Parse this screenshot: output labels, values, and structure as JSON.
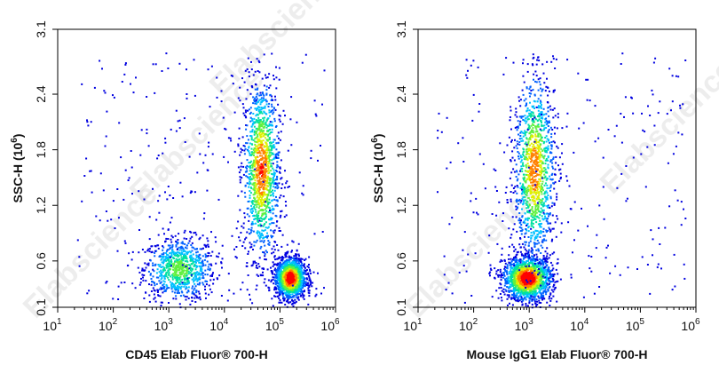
{
  "watermark": "Elabscience",
  "chart_data": [
    {
      "type": "scatter",
      "subtype": "flow-cytometry-density-plot",
      "xscale": "log",
      "xlim": [
        10,
        1000000
      ],
      "ylim": [
        0.1,
        3.1
      ],
      "xlabel": "CD45 Elab Fluor® 700-H",
      "ylabel": "SSC-H",
      "ylabel_unit_base": "10",
      "ylabel_unit_exp": "6",
      "x_tick_base": "10",
      "x_tick_exponents": [
        "1",
        "2",
        "3",
        "4",
        "5",
        "6"
      ],
      "y_ticks": [
        "0.1",
        "0.6",
        "1.2",
        "1.8",
        "2.4",
        "3.1"
      ],
      "y_tick_values": [
        0.1,
        0.6,
        1.2,
        1.8,
        2.4,
        3.1
      ],
      "grid": false,
      "color_scale": [
        "#0000e0",
        "#0060ff",
        "#00c0ff",
        "#00e0a0",
        "#60f040",
        "#e0f000",
        "#ff8000",
        "#ff0000"
      ],
      "populations": [
        {
          "x_center": 1500,
          "y_center": 0.52,
          "x_spread_log": 0.32,
          "y_spread": 0.17,
          "density": 0.55
        },
        {
          "x_center": 45000,
          "y_center": 1.6,
          "x_spread_log": 0.16,
          "y_spread": 0.48,
          "density": 0.85
        },
        {
          "x_center": 150000,
          "y_center": 0.42,
          "x_spread_log": 0.14,
          "y_spread": 0.11,
          "density": 1.0
        }
      ]
    },
    {
      "type": "scatter",
      "subtype": "flow-cytometry-density-plot",
      "xscale": "log",
      "xlim": [
        10,
        1000000
      ],
      "ylim": [
        0.1,
        3.1
      ],
      "xlabel": "Mouse IgG1 Elab Fluor® 700-H",
      "ylabel": "SSC-H",
      "ylabel_unit_base": "10",
      "ylabel_unit_exp": "6",
      "x_tick_base": "10",
      "x_tick_exponents": [
        "1",
        "2",
        "3",
        "4",
        "5",
        "6"
      ],
      "y_ticks": [
        "0.1",
        "0.6",
        "1.2",
        "1.8",
        "2.4",
        "3.1"
      ],
      "y_tick_values": [
        0.1,
        0.6,
        1.2,
        1.8,
        2.4,
        3.1
      ],
      "grid": false,
      "color_scale": [
        "#0000e0",
        "#0060ff",
        "#00c0ff",
        "#00e0a0",
        "#60f040",
        "#e0f000",
        "#ff8000",
        "#ff0000"
      ],
      "populations": [
        {
          "x_center": 900,
          "y_center": 0.42,
          "x_spread_log": 0.22,
          "y_spread": 0.12,
          "density": 1.0
        },
        {
          "x_center": 1200,
          "y_center": 1.6,
          "x_spread_log": 0.18,
          "y_spread": 0.5,
          "density": 0.8
        }
      ]
    }
  ]
}
